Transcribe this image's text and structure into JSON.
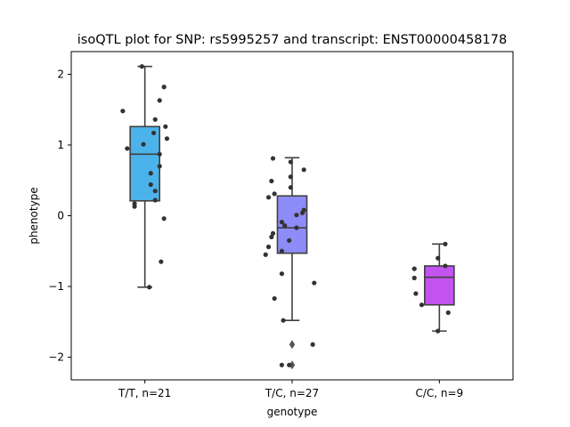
{
  "chart_data": {
    "type": "boxplot",
    "title": "isoQTL plot for SNP: rs5995257 and transcript: ENST00000458178",
    "xlabel": "genotype",
    "ylabel": "phenotype",
    "ylim": [
      -2.32,
      2.32
    ],
    "yticks": [
      -2,
      -1,
      0,
      1,
      2
    ],
    "yticklabels": [
      "−2",
      "−1",
      "0",
      "1",
      "2"
    ],
    "grid": false,
    "categories": [
      "T/T, n=21",
      "T/C, n=27",
      "C/C, n=9"
    ],
    "colors": [
      "#4cb3ea",
      "#8e8cf8",
      "#c353ee"
    ],
    "boxes": [
      {
        "q1": 0.21,
        "median": 0.87,
        "q3": 1.26,
        "whisker_low": -1.01,
        "whisker_high": 2.11,
        "outliers": []
      },
      {
        "q1": -0.53,
        "median": -0.17,
        "q3": 0.28,
        "whisker_low": -1.48,
        "whisker_high": 0.82,
        "outliers": [
          -1.82,
          -2.11
        ]
      },
      {
        "q1": -1.26,
        "median": -0.87,
        "q3": -0.71,
        "whisker_low": -1.63,
        "whisker_high": -0.4,
        "outliers": []
      }
    ],
    "points": [
      [
        {
          "dx": -0.02,
          "y": 2.11
        },
        {
          "dx": 0.13,
          "y": 1.82
        },
        {
          "dx": 0.1,
          "y": 1.63
        },
        {
          "dx": -0.15,
          "y": 1.48
        },
        {
          "dx": 0.07,
          "y": 1.36
        },
        {
          "dx": 0.14,
          "y": 1.26
        },
        {
          "dx": 0.06,
          "y": 1.17
        },
        {
          "dx": 0.15,
          "y": 1.09
        },
        {
          "dx": -0.01,
          "y": 1.01
        },
        {
          "dx": -0.12,
          "y": 0.95
        },
        {
          "dx": 0.1,
          "y": 0.87
        },
        {
          "dx": 0.1,
          "y": 0.7
        },
        {
          "dx": 0.04,
          "y": 0.6
        },
        {
          "dx": 0.04,
          "y": 0.44
        },
        {
          "dx": 0.07,
          "y": 0.35
        },
        {
          "dx": 0.07,
          "y": 0.22
        },
        {
          "dx": -0.07,
          "y": 0.17
        },
        {
          "dx": -0.07,
          "y": 0.13
        },
        {
          "dx": 0.13,
          "y": -0.04
        },
        {
          "dx": 0.11,
          "y": -0.65
        },
        {
          "dx": 0.03,
          "y": -1.01
        }
      ],
      [
        {
          "dx": -0.13,
          "y": 0.81
        },
        {
          "dx": -0.01,
          "y": 0.76
        },
        {
          "dx": 0.08,
          "y": 0.65
        },
        {
          "dx": -0.01,
          "y": 0.55
        },
        {
          "dx": -0.14,
          "y": 0.49
        },
        {
          "dx": -0.01,
          "y": 0.4
        },
        {
          "dx": -0.12,
          "y": 0.31
        },
        {
          "dx": -0.16,
          "y": 0.26
        },
        {
          "dx": 0.08,
          "y": 0.08
        },
        {
          "dx": 0.07,
          "y": 0.04
        },
        {
          "dx": 0.03,
          "y": 0.01
        },
        {
          "dx": -0.07,
          "y": -0.09
        },
        {
          "dx": -0.05,
          "y": -0.14
        },
        {
          "dx": 0.03,
          "y": -0.17
        },
        {
          "dx": -0.13,
          "y": -0.25
        },
        {
          "dx": -0.14,
          "y": -0.3
        },
        {
          "dx": -0.02,
          "y": -0.35
        },
        {
          "dx": -0.16,
          "y": -0.44
        },
        {
          "dx": -0.07,
          "y": -0.5
        },
        {
          "dx": -0.18,
          "y": -0.55
        },
        {
          "dx": -0.07,
          "y": -0.82
        },
        {
          "dx": 0.15,
          "y": -0.95
        },
        {
          "dx": -0.12,
          "y": -1.17
        },
        {
          "dx": -0.06,
          "y": -1.48
        },
        {
          "dx": 0.14,
          "y": -1.82
        },
        {
          "dx": -0.07,
          "y": -2.11
        },
        {
          "dx": -0.02,
          "y": -2.11
        }
      ],
      [
        {
          "dx": 0.04,
          "y": -0.4
        },
        {
          "dx": -0.01,
          "y": -0.6
        },
        {
          "dx": 0.04,
          "y": -0.71
        },
        {
          "dx": -0.17,
          "y": -0.75
        },
        {
          "dx": -0.17,
          "y": -0.88
        },
        {
          "dx": -0.16,
          "y": -1.1
        },
        {
          "dx": -0.12,
          "y": -1.26
        },
        {
          "dx": 0.06,
          "y": -1.37
        },
        {
          "dx": -0.01,
          "y": -1.63
        }
      ]
    ]
  }
}
